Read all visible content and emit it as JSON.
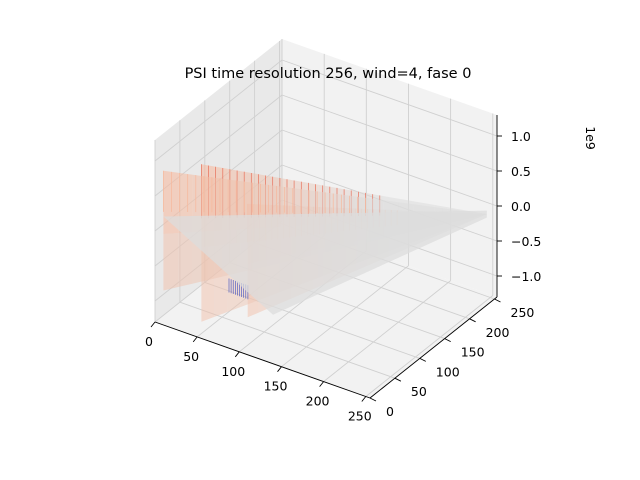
{
  "chart_data": {
    "type": "surface-3d",
    "title": "PSI time resolution 256, wind=4, fase 0",
    "xlabel": "",
    "ylabel": "",
    "zlabel": "",
    "x_ticks": [
      "0",
      "50",
      "100",
      "150",
      "200",
      "250"
    ],
    "y_ticks": [
      "0",
      "50",
      "100",
      "150",
      "200",
      "250"
    ],
    "z_ticks": [
      "−1.0",
      "−0.5",
      "0.0",
      "0.5",
      "1.0"
    ],
    "z_offset_label": "1e9",
    "xlim": [
      0,
      255
    ],
    "ylim": [
      0,
      255
    ],
    "zlim": [
      -1.3,
      1.3
    ],
    "z_scale": 1000000000,
    "grid": true,
    "colormap": "coolwarm",
    "colors": {
      "pane": "#f2f2f2",
      "pane_side": "#e9e9e9",
      "grid": "#d0d0d0",
      "surface_light": "#dcdcdc",
      "surface_warm": "#f7b89c",
      "surface_hot": "#e8705a",
      "surface_cool": "#3b4cc0"
    },
    "ridges": [
      {
        "x": 10,
        "z_peak": 0.95
      },
      {
        "x": 55,
        "z_peak": 1.25
      },
      {
        "x": 110,
        "z_peak": 0.9
      }
    ]
  }
}
